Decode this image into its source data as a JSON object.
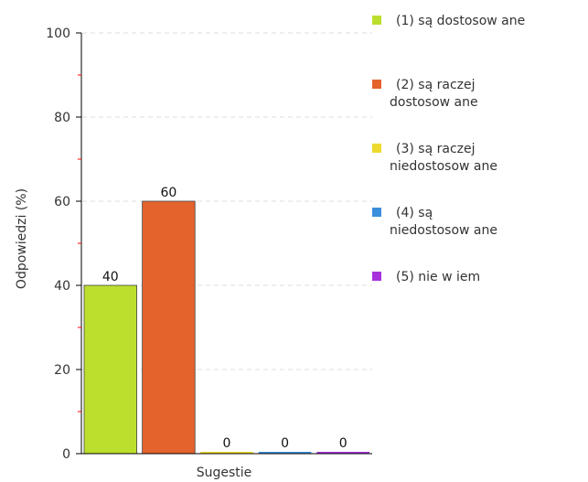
{
  "chart_data": {
    "type": "bar",
    "xlabel": "Sugestie",
    "ylabel": "Odpowiedzi (%)",
    "ylim": [
      0,
      100
    ],
    "yticks": [
      0,
      20,
      40,
      60,
      80,
      100
    ],
    "grid": true,
    "legend_position": "right",
    "series": [
      {
        "name": "(1) są dostosowane",
        "value": 40,
        "label": "40",
        "color": "#bcdf2e",
        "legend_lines": [
          "(1) są dostosow ane"
        ]
      },
      {
        "name": "(2) są raczej dostosowane",
        "value": 60,
        "label": "60",
        "color": "#e4632d",
        "legend_lines": [
          "(2) są raczej",
          "dostosow ane"
        ]
      },
      {
        "name": "(3) są raczej niedostosowane",
        "value": 0,
        "label": "0",
        "color": "#eeda2d",
        "legend_lines": [
          "(3) są raczej",
          "niedostosow ane"
        ]
      },
      {
        "name": "(4) są niedostosowane",
        "value": 0,
        "label": "0",
        "color": "#3c8fdc",
        "legend_lines": [
          "(4) są",
          "niedostosow ane"
        ]
      },
      {
        "name": "(5) nie wiem",
        "value": 0,
        "label": "0",
        "color": "#a634da",
        "legend_lines": [
          "(5) nie w iem"
        ]
      }
    ]
  }
}
